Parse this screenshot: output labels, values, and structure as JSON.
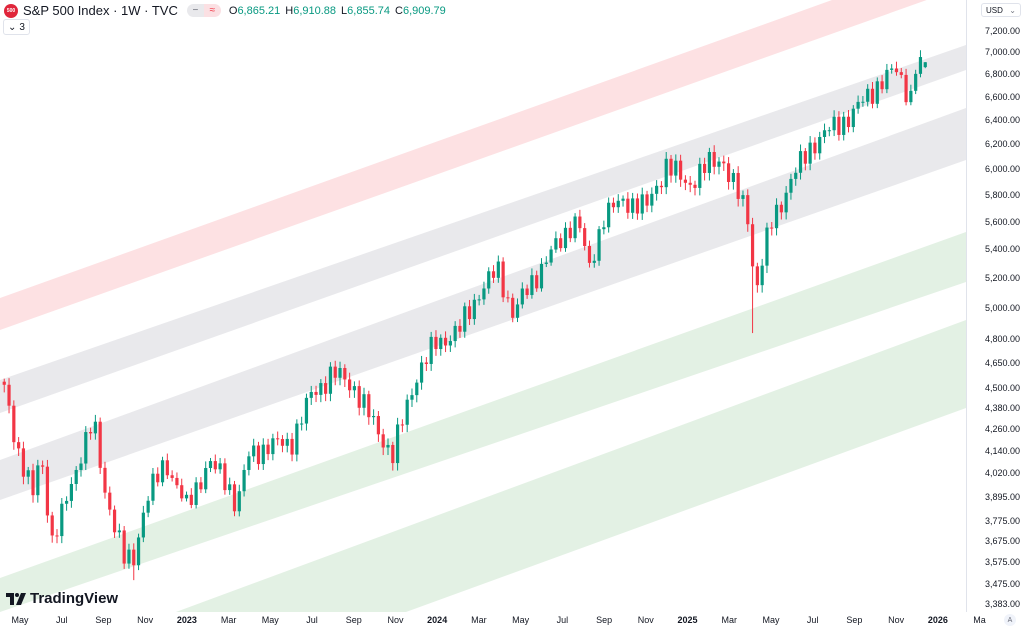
{
  "header": {
    "logo_text": "500",
    "title": "S&P 500 Index · 1W · TVC",
    "pill_left": "−",
    "pill_right": "≈",
    "ohlc": [
      {
        "key": "O",
        "value": "6,865.21"
      },
      {
        "key": "H",
        "value": "6,910.88"
      },
      {
        "key": "L",
        "value": "6,855.74"
      },
      {
        "key": "C",
        "value": "6,909.79"
      }
    ],
    "indicators_count": "3",
    "indicators_chevron": "⌄"
  },
  "currency": {
    "label": "USD",
    "chevron": "⌄"
  },
  "auto_scale_label": "A",
  "brand": "TradingView",
  "colors": {
    "up": "#089981",
    "down": "#F23645",
    "band_red": "#fde1e3",
    "band_gray": "#e9e9ec",
    "band_green": "#e3f1e4"
  },
  "chart_data": {
    "type": "candlestick",
    "title": "S&P 500 Index · 1W · TVC",
    "yscale": "log",
    "ylim": [
      3383,
      7200
    ],
    "y_ticks": [
      "7,200.00",
      "7,000.00",
      "6,800.00",
      "6,600.00",
      "6,400.00",
      "6,200.00",
      "6,000.00",
      "5,800.00",
      "5,600.00",
      "5,400.00",
      "5,200.00",
      "5,000.00",
      "4,800.00",
      "4,650.00",
      "4,500.00",
      "4,380.00",
      "4,260.00",
      "4,140.00",
      "4,020.00",
      "3,895.00",
      "3,775.00",
      "3,675.00",
      "3,575.00",
      "3,475.00",
      "3,383.00"
    ],
    "x_ticks": [
      {
        "label": "May",
        "m": 0
      },
      {
        "label": "Jul",
        "m": 2
      },
      {
        "label": "Sep",
        "m": 4
      },
      {
        "label": "Nov",
        "m": 6
      },
      {
        "label": "2023",
        "m": 8,
        "year": true
      },
      {
        "label": "Mar",
        "m": 10
      },
      {
        "label": "May",
        "m": 12
      },
      {
        "label": "Jul",
        "m": 14
      },
      {
        "label": "Sep",
        "m": 16
      },
      {
        "label": "Nov",
        "m": 18
      },
      {
        "label": "2024",
        "m": 20,
        "year": true
      },
      {
        "label": "Mar",
        "m": 22
      },
      {
        "label": "May",
        "m": 24
      },
      {
        "label": "Jul",
        "m": 26
      },
      {
        "label": "Sep",
        "m": 28
      },
      {
        "label": "Nov",
        "m": 30
      },
      {
        "label": "2025",
        "m": 32,
        "year": true
      },
      {
        "label": "Mar",
        "m": 34
      },
      {
        "label": "May",
        "m": 36
      },
      {
        "label": "Jul",
        "m": 38
      },
      {
        "label": "Sep",
        "m": 40
      },
      {
        "label": "Nov",
        "m": 42
      },
      {
        "label": "2026",
        "m": 44,
        "year": true
      },
      {
        "label": "Ma",
        "m": 46
      }
    ],
    "close_anchors": [
      [
        "2022-04-08",
        4490
      ],
      [
        "2022-04-29",
        4132
      ],
      [
        "2022-05-20",
        3900
      ],
      [
        "2022-05-31",
        4132
      ],
      [
        "2022-06-17",
        3675
      ],
      [
        "2022-06-30",
        3785
      ],
      [
        "2022-07-29",
        4130
      ],
      [
        "2022-08-16",
        4300
      ],
      [
        "2022-08-31",
        3955
      ],
      [
        "2022-09-30",
        3586
      ],
      [
        "2022-10-13",
        3580
      ],
      [
        "2022-10-31",
        3872
      ],
      [
        "2022-11-30",
        4080
      ],
      [
        "2022-12-30",
        3840
      ],
      [
        "2023-01-31",
        4077
      ],
      [
        "2023-02-28",
        3970
      ],
      [
        "2023-03-13",
        3850
      ],
      [
        "2023-03-31",
        4109
      ],
      [
        "2023-04-28",
        4169
      ],
      [
        "2023-05-31",
        4180
      ],
      [
        "2023-06-30",
        4450
      ],
      [
        "2023-07-31",
        4589
      ],
      [
        "2023-08-31",
        4508
      ],
      [
        "2023-09-29",
        4288
      ],
      [
        "2023-10-27",
        4117
      ],
      [
        "2023-11-30",
        4568
      ],
      [
        "2023-12-29",
        4770
      ],
      [
        "2024-01-31",
        4846
      ],
      [
        "2024-02-29",
        5096
      ],
      [
        "2024-03-28",
        5254
      ],
      [
        "2024-04-19",
        4967
      ],
      [
        "2024-04-30",
        5036
      ],
      [
        "2024-05-31",
        5278
      ],
      [
        "2024-06-28",
        5460
      ],
      [
        "2024-07-16",
        5615
      ],
      [
        "2024-07-31",
        5522
      ],
      [
        "2024-08-05",
        5186
      ],
      [
        "2024-08-30",
        5648
      ],
      [
        "2024-09-30",
        5762
      ],
      [
        "2024-10-31",
        5705
      ],
      [
        "2024-11-29",
        6032
      ],
      [
        "2024-12-31",
        5882
      ],
      [
        "2025-01-31",
        6040
      ],
      [
        "2025-02-19",
        6100
      ],
      [
        "2025-02-28",
        5955
      ],
      [
        "2025-03-31",
        5612
      ],
      [
        "2025-04-07",
        5070
      ],
      [
        "2025-04-30",
        5569
      ],
      [
        "2025-05-30",
        5912
      ],
      [
        "2025-06-30",
        6205
      ],
      [
        "2025-07-31",
        6339
      ],
      [
        "2025-08-29",
        6460
      ],
      [
        "2025-09-30",
        6688
      ],
      [
        "2025-10-31",
        6840
      ],
      [
        "2025-11-21",
        6600
      ],
      [
        "2025-11-28",
        6849
      ],
      [
        "2025-12-17",
        6910
      ]
    ],
    "extreme_lows": [
      [
        "2025-04-07",
        4835
      ],
      [
        "2022-10-13",
        3491
      ]
    ],
    "last_candle": {
      "open": 6865.21,
      "high": 6910.88,
      "low": 6855.74,
      "close": 6909.79
    }
  }
}
